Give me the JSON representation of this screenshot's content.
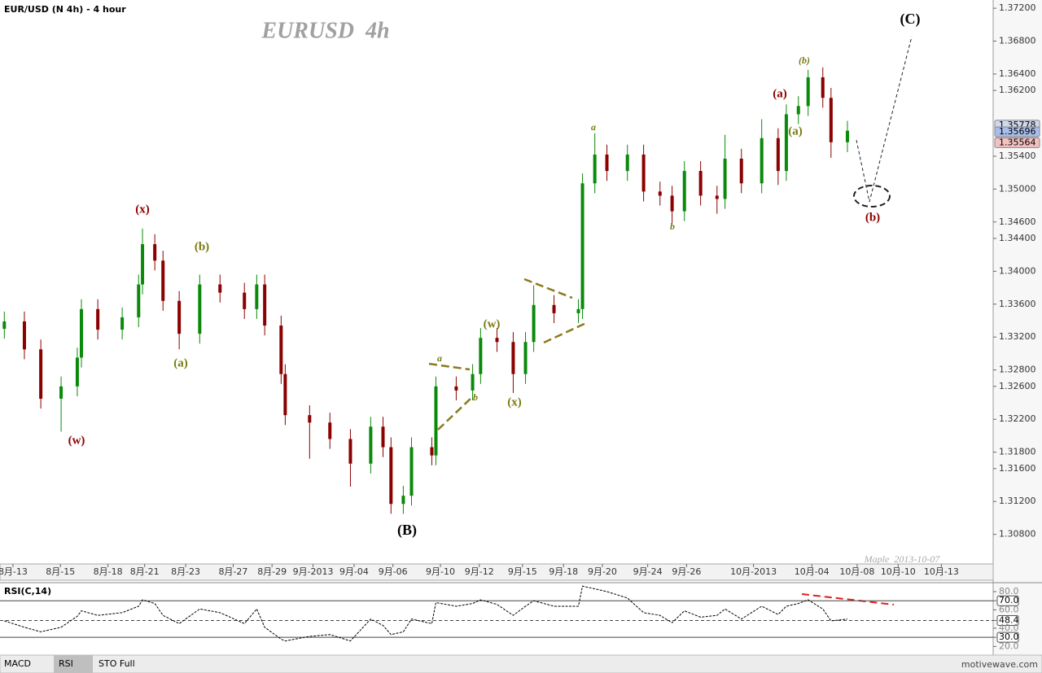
{
  "header": "EUR/USD (N 4h) - 4 hour",
  "tabs": [
    "MACD",
    "RSI",
    "STO Full"
  ],
  "site": "motivewave.com",
  "chart_data": [
    {
      "type": "candlestick",
      "title": "EURUSD  4h",
      "watermark": "Maple  2013-10-07",
      "up_color": "#0a8a0a",
      "down_color": "#8b0000",
      "x": [
        0.2,
        1.13,
        1.89,
        2.83,
        3.58,
        3.77,
        4.53,
        5.66,
        6.42,
        6.6,
        7.17,
        7.55,
        8.3,
        9.25,
        10.19,
        11.32,
        11.89,
        12.26,
        13.02,
        13.21,
        14.34,
        15.28,
        16.23,
        17.17,
        17.74,
        18.11,
        18.68,
        19.06,
        20,
        20.19,
        21.13,
        21.89,
        22.26,
        23.02,
        23.77,
        24.34,
        24.72,
        25.66,
        26.79,
        26.98,
        27.55,
        28.11,
        29.06,
        29.81,
        30.57,
        31.13,
        31.7,
        32.45,
        33.21,
        33.58,
        34.34,
        35.28,
        36.04,
        36.42,
        36.98,
        37.43,
        38.11,
        38.49,
        39.25
      ],
      "open": [
        1.333,
        1.3339,
        1.3305,
        1.3245,
        1.326,
        1.3295,
        1.3354,
        1.3329,
        1.3344,
        1.3384,
        1.3433,
        1.3413,
        1.3364,
        1.3324,
        1.3384,
        1.3374,
        1.3354,
        1.3384,
        1.3334,
        1.3275,
        1.3225,
        1.3216,
        1.3196,
        1.3166,
        1.3211,
        1.3186,
        1.3117,
        1.3127,
        1.3186,
        1.3176,
        1.326,
        1.3255,
        1.3275,
        1.3319,
        1.3314,
        1.3275,
        1.3314,
        1.3359,
        1.3349,
        1.3354,
        1.3507,
        1.3542,
        1.3522,
        1.3542,
        1.3497,
        1.3492,
        1.3473,
        1.3522,
        1.3492,
        1.3488,
        1.3537,
        1.3507,
        1.3562,
        1.3522,
        1.3591,
        1.3601,
        1.3636,
        1.3611,
        1.3557
      ],
      "high": [
        1.3351,
        1.3351,
        1.3317,
        1.3272,
        1.3307,
        1.3366,
        1.3366,
        1.3356,
        1.3396,
        1.3452,
        1.3445,
        1.3425,
        1.3376,
        1.3396,
        1.3396,
        1.3386,
        1.3396,
        1.3396,
        1.3346,
        1.3287,
        1.3237,
        1.3228,
        1.3208,
        1.3223,
        1.3223,
        1.3198,
        1.3139,
        1.3198,
        1.3198,
        1.3272,
        1.3272,
        1.3287,
        1.3331,
        1.3331,
        1.3326,
        1.3326,
        1.3383,
        1.3371,
        1.3366,
        1.3519,
        1.3568,
        1.3554,
        1.3554,
        1.3554,
        1.3509,
        1.3504,
        1.3534,
        1.3534,
        1.3504,
        1.3566,
        1.3549,
        1.3585,
        1.3574,
        1.3603,
        1.3613,
        1.3645,
        1.3648,
        1.3623,
        1.3583
      ],
      "low": [
        1.3318,
        1.3293,
        1.3233,
        1.3205,
        1.3248,
        1.3283,
        1.3317,
        1.3317,
        1.3332,
        1.3372,
        1.3401,
        1.3352,
        1.3305,
        1.3312,
        1.3362,
        1.3342,
        1.3342,
        1.3322,
        1.3263,
        1.3213,
        1.3172,
        1.3184,
        1.3138,
        1.3154,
        1.3174,
        1.3105,
        1.3105,
        1.3115,
        1.3164,
        1.3164,
        1.3243,
        1.3243,
        1.3263,
        1.3302,
        1.3252,
        1.3263,
        1.3302,
        1.3337,
        1.3337,
        1.3342,
        1.3495,
        1.351,
        1.351,
        1.3485,
        1.348,
        1.3458,
        1.3461,
        1.348,
        1.347,
        1.3476,
        1.3495,
        1.3495,
        1.3505,
        1.351,
        1.3579,
        1.3589,
        1.3599,
        1.3538,
        1.3545
      ],
      "close": [
        1.3339,
        1.3305,
        1.3245,
        1.326,
        1.3295,
        1.3354,
        1.3329,
        1.3344,
        1.3384,
        1.3433,
        1.3413,
        1.3364,
        1.3324,
        1.3384,
        1.3374,
        1.3354,
        1.3384,
        1.3334,
        1.3275,
        1.3225,
        1.3216,
        1.3196,
        1.3166,
        1.3211,
        1.3186,
        1.3117,
        1.3127,
        1.3186,
        1.3176,
        1.326,
        1.3255,
        1.3275,
        1.3319,
        1.3314,
        1.3275,
        1.3314,
        1.3359,
        1.3349,
        1.3354,
        1.3507,
        1.3542,
        1.3522,
        1.3542,
        1.3497,
        1.3492,
        1.3473,
        1.3522,
        1.3492,
        1.3488,
        1.3537,
        1.3507,
        1.3562,
        1.3522,
        1.3591,
        1.3601,
        1.3636,
        1.3611,
        1.3557,
        1.3571
      ],
      "xlim": [
        0,
        46
      ],
      "xticks": [
        {
          "value": 0.6,
          "label": "8月-13"
        },
        {
          "value": 2.8,
          "label": "8月-15"
        },
        {
          "value": 5.0,
          "label": "8月-18"
        },
        {
          "value": 6.7,
          "label": "8月-21"
        },
        {
          "value": 8.6,
          "label": "8月-23"
        },
        {
          "value": 10.8,
          "label": "8月-27"
        },
        {
          "value": 12.6,
          "label": "8月-29"
        },
        {
          "value": 14.5,
          "label": "9月-2013"
        },
        {
          "value": 16.4,
          "label": "9月-04"
        },
        {
          "value": 18.2,
          "label": "9月-06"
        },
        {
          "value": 20.4,
          "label": "9月-10"
        },
        {
          "value": 22.2,
          "label": "9月-12"
        },
        {
          "value": 24.2,
          "label": "9月-15"
        },
        {
          "value": 26.1,
          "label": "9月-18"
        },
        {
          "value": 27.9,
          "label": "9月-20"
        },
        {
          "value": 30.0,
          "label": "9月-24"
        },
        {
          "value": 31.8,
          "label": "9月-26"
        },
        {
          "value": 34.9,
          "label": "10月-2013"
        },
        {
          "value": 37.6,
          "label": "10月-04"
        },
        {
          "value": 39.7,
          "label": "10月-08"
        },
        {
          "value": 41.6,
          "label": "10月-10"
        },
        {
          "value": 43.6,
          "label": "10月-13"
        }
      ],
      "ylim": [
        1.3044,
        1.373
      ],
      "yticks": [
        {
          "value": 1.308,
          "label": "1.30800"
        },
        {
          "value": 1.312,
          "label": "1.31200"
        },
        {
          "value": 1.316,
          "label": "1.31600"
        },
        {
          "value": 1.318,
          "label": "1.31800"
        },
        {
          "value": 1.322,
          "label": "1.32200"
        },
        {
          "value": 1.326,
          "label": "1.32600"
        },
        {
          "value": 1.328,
          "label": "1.32800"
        },
        {
          "value": 1.332,
          "label": "1.33200"
        },
        {
          "value": 1.336,
          "label": "1.33600"
        },
        {
          "value": 1.34,
          "label": "1.34000"
        },
        {
          "value": 1.344,
          "label": "1.34400"
        },
        {
          "value": 1.346,
          "label": "1.34600"
        },
        {
          "value": 1.35,
          "label": "1.35000"
        },
        {
          "value": 1.354,
          "label": "1.35400"
        },
        {
          "value": 1.362,
          "label": "1.36200"
        },
        {
          "value": 1.364,
          "label": "1.36400"
        },
        {
          "value": 1.368,
          "label": "1.36800"
        },
        {
          "value": 1.372,
          "label": "1.37200"
        }
      ],
      "price_markers": [
        1.35778,
        1.35696,
        1.35564
      ],
      "price_marker_colors": [
        "#cfd9ec",
        "#a9bdea",
        "#f4c0c0"
      ],
      "annotations": [
        {
          "text": "(x)",
          "color": "#8b0000"
        },
        {
          "text": "(b)",
          "color": "#7a7a10"
        },
        {
          "text": "(a)",
          "color": "#7a7a10"
        },
        {
          "text": "(w)",
          "color": "#8b0000"
        },
        {
          "text": "(B)",
          "color": "#000000"
        },
        {
          "text": "a",
          "color": "#7a7a10"
        },
        {
          "text": "b",
          "color": "#7a7a10"
        },
        {
          "text": "(w)",
          "color": "#7a7a10"
        },
        {
          "text": "(x)",
          "color": "#7a7a10"
        },
        {
          "text": "a",
          "color": "#7a7a10"
        },
        {
          "text": "b",
          "color": "#7a7a10"
        },
        {
          "text": "(a)",
          "color": "#8b0000"
        },
        {
          "text": "(a)",
          "color": "#7a7a10"
        },
        {
          "text": "(b)",
          "color": "#7a7a10"
        },
        {
          "text": "(C)",
          "color": "#000000"
        },
        {
          "text": "(b)",
          "color": "#8b0000"
        }
      ]
    },
    {
      "type": "line",
      "title": "RSI(C,14)",
      "x": [
        0.2,
        1.13,
        1.89,
        2.83,
        3.58,
        3.77,
        4.53,
        5.66,
        6.42,
        6.6,
        7.17,
        7.55,
        8.3,
        9.25,
        10.19,
        11.32,
        11.89,
        12.26,
        13.02,
        13.21,
        14.34,
        15.28,
        16.23,
        17.17,
        17.74,
        18.11,
        18.68,
        19.06,
        20,
        20.19,
        21.13,
        21.89,
        22.26,
        23.02,
        23.77,
        24.34,
        24.72,
        25.66,
        26.79,
        26.98,
        27.55,
        28.11,
        29.06,
        29.81,
        30.57,
        31.13,
        31.7,
        32.45,
        33.21,
        33.58,
        34.34,
        35.28,
        36.04,
        36.42,
        36.98,
        37.43,
        38.11,
        38.49,
        39.25
      ],
      "series": [
        {
          "name": "RSI",
          "color": "#000000",
          "values": [
            48,
            41,
            36,
            41,
            53,
            59,
            54,
            57,
            64,
            71,
            67,
            54,
            45,
            61,
            57,
            45,
            61,
            41,
            28,
            26,
            31,
            33,
            26,
            50,
            43,
            33,
            36,
            50,
            45,
            68,
            64,
            67,
            71,
            66,
            54,
            64,
            70,
            64,
            64,
            86,
            83,
            80,
            73,
            57,
            54,
            46,
            59,
            52,
            54,
            61,
            50,
            64,
            55,
            64,
            67,
            71,
            61,
            48,
            50
          ]
        }
      ],
      "xlim": [
        0,
        46
      ],
      "ylim": [
        15,
        88
      ],
      "yticks": [
        {
          "value": 80,
          "label": "80.0"
        },
        {
          "value": 70,
          "label": "70.0"
        },
        {
          "value": 60,
          "label": "60.0"
        },
        48.4,
        {
          "value": 40,
          "label": "40.0"
        },
        {
          "value": 30,
          "label": "30.0"
        },
        {
          "value": 20,
          "label": "20.0"
        }
      ],
      "levels": [
        70,
        48.4,
        30
      ]
    }
  ]
}
